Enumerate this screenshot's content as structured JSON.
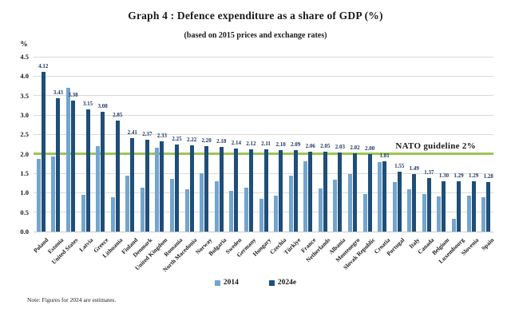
{
  "title": "Graph 4 : Defence expenditure as a share of GDP (%)",
  "subtitle": "(based on 2015 prices and exchange rates)",
  "y_axis_unit": "%",
  "note": "Note: Figures for 2024 are estimates.",
  "colors": {
    "series_2014": "#73a5ce",
    "series_2024e": "#1f4e79",
    "guideline_green": "#9cc553",
    "gridline_gray": "#d9d9d9",
    "value_label_navy": "#1f3864"
  },
  "chart_data": {
    "type": "bar",
    "title": "Graph 4 : Defence expenditure as a share of GDP (%)",
    "subtitle": "(based on 2015 prices and exchange rates)",
    "ylabel": "%",
    "ylim": [
      0,
      4.5
    ],
    "ytick_step": 0.5,
    "grid": true,
    "legend_position": "bottom",
    "value_labels_series": "2024e",
    "guideline": {
      "value": 2.0,
      "label": "NATO guideline 2%"
    },
    "categories": [
      "Poland",
      "Estonia",
      "United States",
      "Latvia",
      "Greece",
      "Lithuania",
      "Finland",
      "Denmark",
      "United Kingdom",
      "Romania",
      "North Macedonia",
      "Norway",
      "Bulgaria",
      "Sweden",
      "Germany",
      "Hungary",
      "Czechia",
      "Türkiye",
      "France",
      "Netherlands",
      "Albania",
      "Montenegro",
      "Slovak Republic",
      "Croatia",
      "Portugal",
      "Italy",
      "Canada",
      "Belgium",
      "Luxembourg",
      "Slovenia",
      "Spain"
    ],
    "series": [
      {
        "name": "2014",
        "color": "#73a5ce",
        "values": [
          1.88,
          1.93,
          3.7,
          0.94,
          2.2,
          0.88,
          1.44,
          1.14,
          2.15,
          1.35,
          1.09,
          1.51,
          1.3,
          1.04,
          1.14,
          0.85,
          0.93,
          1.44,
          1.81,
          1.12,
          1.34,
          1.49,
          0.97,
          1.78,
          1.27,
          1.09,
          0.96,
          0.9,
          0.32,
          0.93,
          0.88
        ]
      },
      {
        "name": "2024e",
        "color": "#1f4e79",
        "values": [
          4.12,
          3.43,
          3.38,
          3.15,
          3.08,
          2.85,
          2.41,
          2.37,
          2.33,
          2.25,
          2.22,
          2.2,
          2.18,
          2.14,
          2.12,
          2.11,
          2.1,
          2.09,
          2.06,
          2.05,
          2.03,
          2.02,
          2.0,
          1.81,
          1.55,
          1.49,
          1.37,
          1.3,
          1.29,
          1.29,
          1.28
        ]
      }
    ]
  }
}
